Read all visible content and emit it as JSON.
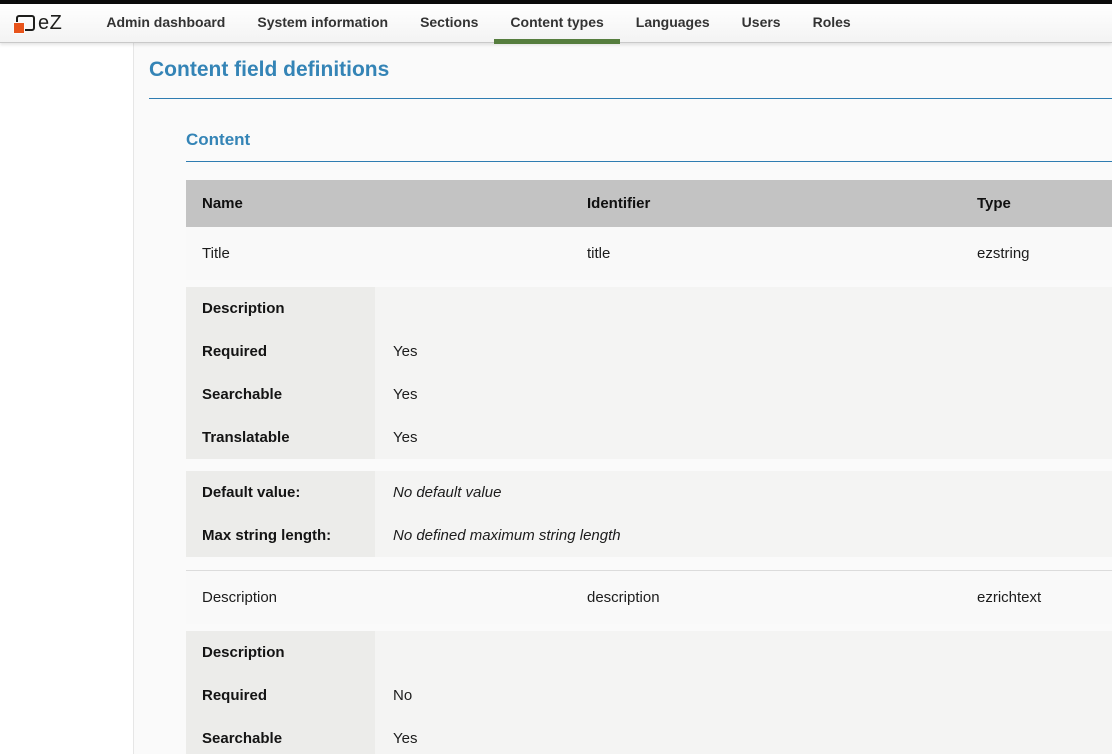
{
  "colors": {
    "accent_blue": "#3484b6",
    "rule_blue": "#2e7cb1",
    "active_tab_green": "#567d3e",
    "logo_orange": "#e8541b",
    "table_header_gray": "#c3c3c3"
  },
  "nav": {
    "logo_text": "eZ",
    "items": [
      {
        "label": "Admin dashboard",
        "active": false
      },
      {
        "label": "System information",
        "active": false
      },
      {
        "label": "Sections",
        "active": false
      },
      {
        "label": "Content types",
        "active": true
      },
      {
        "label": "Languages",
        "active": false
      },
      {
        "label": "Users",
        "active": false
      },
      {
        "label": "Roles",
        "active": false
      }
    ]
  },
  "page": {
    "title": "Content field definitions"
  },
  "section": {
    "title": "Content"
  },
  "fields_table": {
    "headers": {
      "name": "Name",
      "identifier": "Identifier",
      "type": "Type"
    },
    "fields": [
      {
        "name": "Title",
        "identifier": "title",
        "type": "ezstring",
        "attributes": [
          {
            "label": "Description",
            "value": ""
          },
          {
            "label": "Required",
            "value": "Yes"
          },
          {
            "label": "Searchable",
            "value": "Yes"
          },
          {
            "label": "Translatable",
            "value": "Yes"
          }
        ],
        "settings": [
          {
            "label": "Default value:",
            "value": "No default value"
          },
          {
            "label": "Max string length:",
            "value": "No defined maximum string length"
          }
        ]
      },
      {
        "name": "Description",
        "identifier": "description",
        "type": "ezrichtext",
        "attributes": [
          {
            "label": "Description",
            "value": ""
          },
          {
            "label": "Required",
            "value": "No"
          },
          {
            "label": "Searchable",
            "value": "Yes"
          }
        ]
      }
    ]
  }
}
